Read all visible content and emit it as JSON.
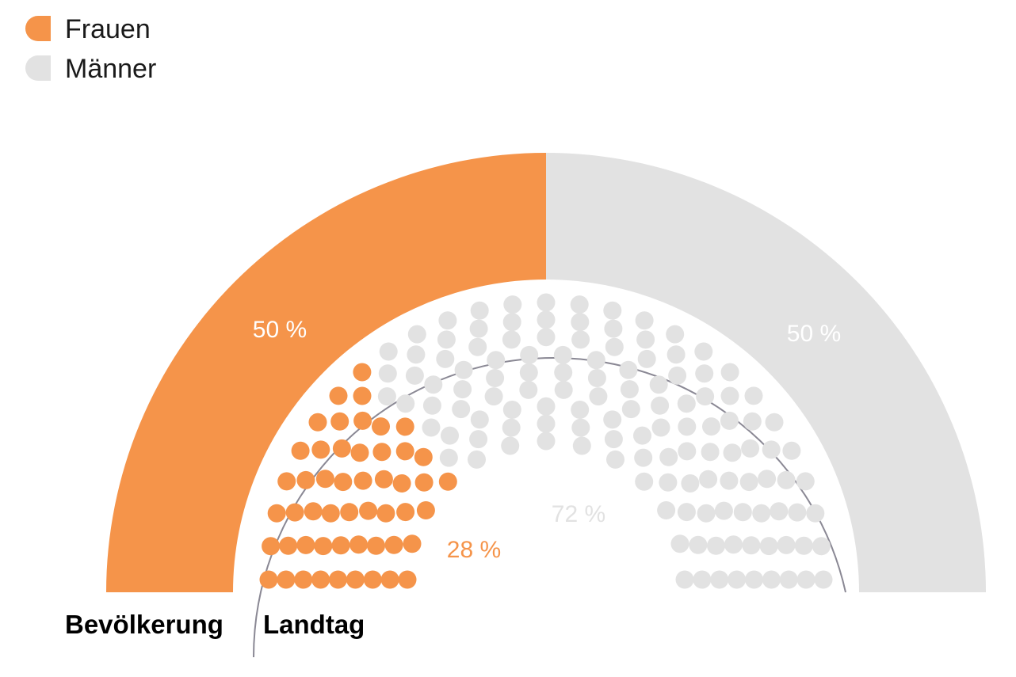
{
  "chart_data": {
    "type": "parliament",
    "legend": [
      {
        "label": "Frauen",
        "color": "#F5944A"
      },
      {
        "label": "Männer",
        "color": "#E2E2E2"
      }
    ],
    "outer_ring": {
      "label": "Bevölkerung",
      "segments": [
        {
          "name": "Frauen",
          "percent": 50,
          "label": "50 %"
        },
        {
          "name": "Männer",
          "percent": 50,
          "label": "50 %"
        }
      ]
    },
    "inner_seats": {
      "label": "Landtag",
      "total_seats": 180,
      "segments": [
        {
          "name": "Frauen",
          "percent": 28,
          "label": "28 %",
          "seats": 51
        },
        {
          "name": "Männer",
          "percent": 72,
          "label": "72 %",
          "seats": 129
        }
      ]
    }
  },
  "colors": {
    "women": "#F5944A",
    "men": "#E2E2E2",
    "divider": "#8A8894",
    "women_label": "#F5944A",
    "men_label": "#E2E2E2",
    "outer_label": "#FFFFFF"
  }
}
